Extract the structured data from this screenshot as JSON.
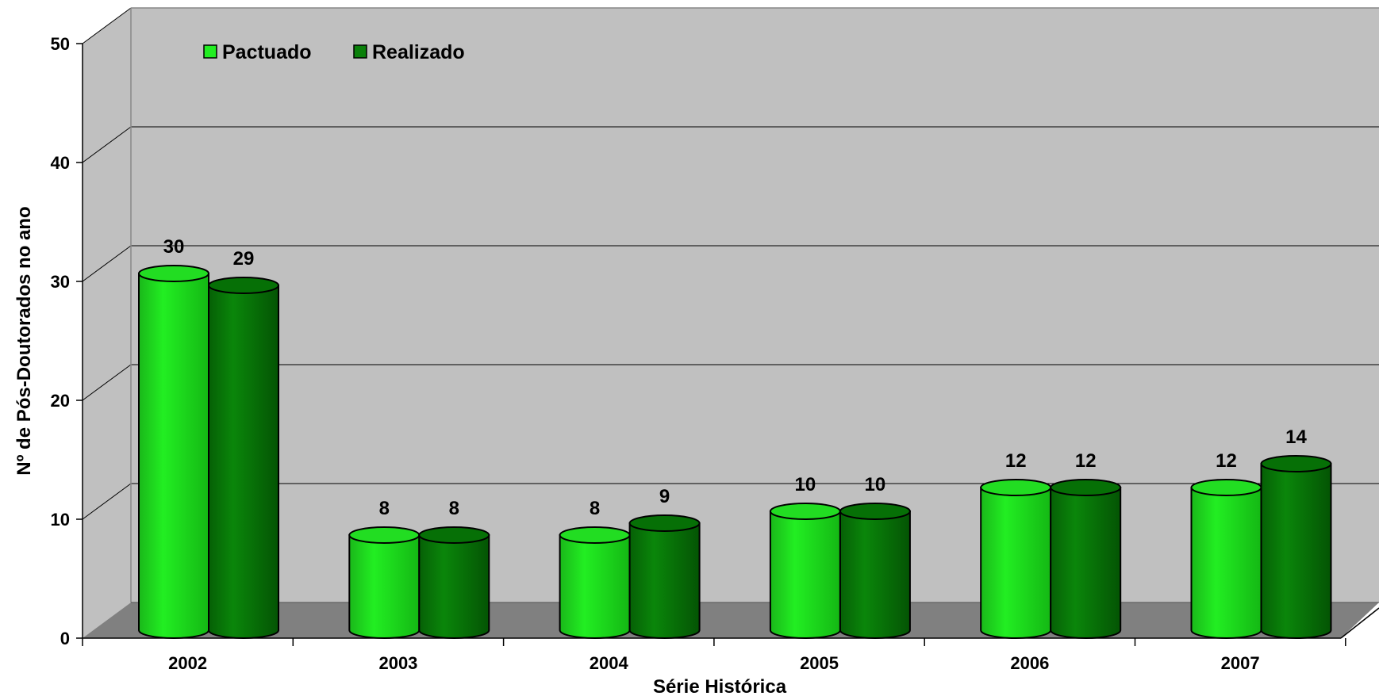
{
  "chart_data": {
    "type": "bar",
    "subtype": "3d-cylinder",
    "categories": [
      "2002",
      "2003",
      "2004",
      "2005",
      "2006",
      "2007"
    ],
    "series": [
      {
        "name": "Pactuado",
        "values": [
          30,
          8,
          8,
          10,
          12,
          12
        ],
        "color": "#1ee61e",
        "top_color": "#22dd22"
      },
      {
        "name": "Realizado",
        "values": [
          29,
          8,
          9,
          10,
          12,
          14
        ],
        "color": "#0a8a0a",
        "top_color": "#067006"
      }
    ],
    "xlabel": "Série Histórica",
    "ylabel": "Nº de Pós-Doutorados no ano",
    "ylim": [
      0,
      50
    ],
    "yticks": [
      "0",
      "10",
      "20",
      "30",
      "40",
      "50"
    ],
    "grid": true,
    "legend": "top-left",
    "wall_color": "#c0c0c0",
    "floor_color": "#808080"
  }
}
